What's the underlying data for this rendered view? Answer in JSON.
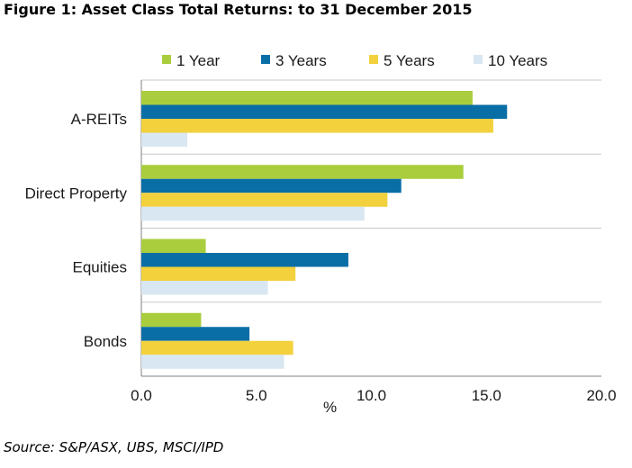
{
  "figure": {
    "title": "Figure 1: Asset Class Total Returns: to 31 December 2015",
    "source": "Source: S&P/ASX, UBS, MSCI/IPD"
  },
  "colors": {
    "1 Year": "#a9cd3c",
    "3 Years": "#0a6ea6",
    "5 Years": "#f2d13d",
    "10 Years": "#d8e7f1",
    "gridline": "#c8c8c8",
    "axis": "#808080"
  },
  "chart_data": {
    "type": "bar",
    "orientation": "horizontal",
    "title": "Figure 1: Asset Class Total Returns: to 31 December 2015",
    "xlabel": "%",
    "ylabel": "",
    "categories": [
      "A-REITs",
      "Direct Property",
      "Equities",
      "Bonds"
    ],
    "series": [
      {
        "name": "1 Year",
        "values": [
          14.4,
          14.0,
          2.8,
          2.6
        ]
      },
      {
        "name": "3 Years",
        "values": [
          15.9,
          11.3,
          9.0,
          4.7
        ]
      },
      {
        "name": "5 Years",
        "values": [
          15.3,
          10.7,
          6.7,
          6.6
        ]
      },
      {
        "name": "10 Years",
        "values": [
          2.0,
          9.7,
          5.5,
          6.2
        ]
      }
    ],
    "xlim": [
      0,
      20
    ],
    "xticks": [
      "0.0",
      "5.0",
      "10.0",
      "15.0",
      "20.0"
    ],
    "grid": "horizontal separators between categories",
    "legend": "top"
  }
}
